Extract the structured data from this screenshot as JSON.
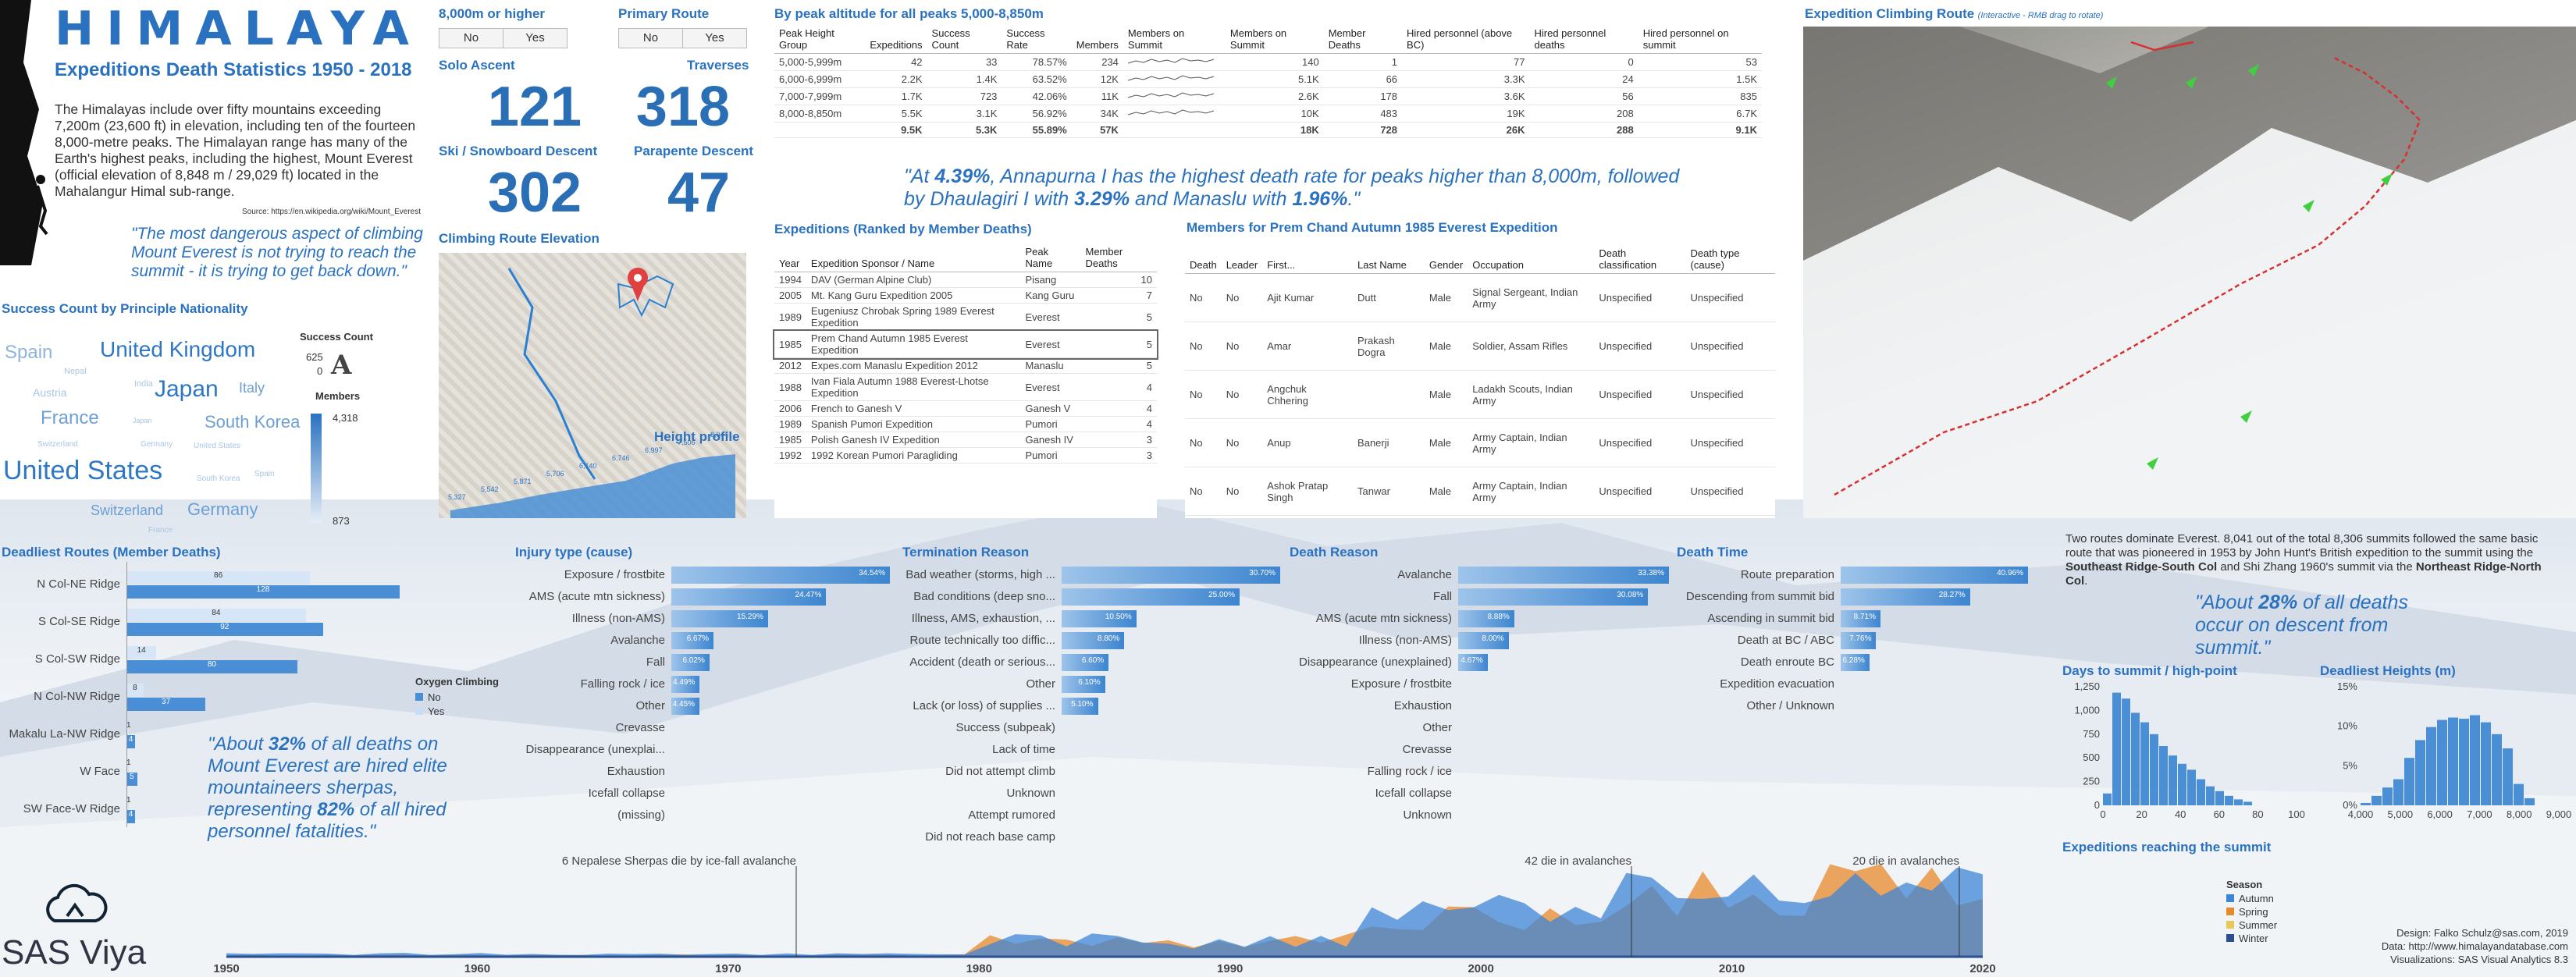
{
  "header": {
    "title": "HIMALAYA",
    "subtitle": "Expeditions Death Statistics 1950 - 2018",
    "intro": "The Himalayas include over fifty mountains exceeding 7,200m (23,600 ft) in elevation, including ten of the fourteen 8,000-metre peaks. The Himalayan range has many of the Earth's highest peaks, including the highest, Mount Everest (official elevation of 8,848 m / 29,029 ft) located in the Mahalangur Himal sub-range.",
    "source": "Source: https://en.wikipedia.org/wiki/Mount_Everest",
    "quote": "\"The most dangerous aspect of climbing Mount Everest is not trying to reach the summit - it is trying to get back down.\""
  },
  "filters": {
    "f8000": {
      "label": "8,000m or higher",
      "no": "No",
      "yes": "Yes"
    },
    "primary": {
      "label": "Primary Route",
      "no": "No",
      "yes": "Yes"
    }
  },
  "kpis": {
    "solo_label": "Solo Ascent",
    "solo": "121",
    "trav_label": "Traverses",
    "trav": "318",
    "ski_label": "Ski / Snowboard Descent",
    "ski": "302",
    "para_label": "Parapente Descent",
    "para": "47"
  },
  "success": {
    "title": "Success Count by Principle Nationality",
    "legend1": "Success Count",
    "v625": "625",
    "v0": "0",
    "legend2": "Members",
    "m_max": "4,318",
    "m_min": "873",
    "words": [
      {
        "t": "Spain",
        "s": 24,
        "x": 6,
        "y": 438,
        "c": "#8fb3db"
      },
      {
        "t": "United Kingdom",
        "s": 28,
        "x": 128,
        "y": 432,
        "c": "#2e77c4"
      },
      {
        "t": "Nepal",
        "s": 11,
        "x": 82,
        "y": 470,
        "c": "#a9c5e4"
      },
      {
        "t": "Italy",
        "s": 18,
        "x": 306,
        "y": 487,
        "c": "#6c9fd5"
      },
      {
        "t": "Austria",
        "s": 14,
        "x": 42,
        "y": 495,
        "c": "#a9c5e4"
      },
      {
        "t": "Japan",
        "s": 30,
        "x": 198,
        "y": 482,
        "c": "#2e77c4"
      },
      {
        "t": "India",
        "s": 11,
        "x": 172,
        "y": 486,
        "c": "#a9c5e4"
      },
      {
        "t": "France",
        "s": 24,
        "x": 52,
        "y": 522,
        "c": "#6c9fd5"
      },
      {
        "t": "Japan",
        "s": 9,
        "x": 170,
        "y": 534,
        "c": "#a9c5e4"
      },
      {
        "t": "South Korea",
        "s": 22,
        "x": 262,
        "y": 528,
        "c": "#6c9fd5"
      },
      {
        "t": "Switzerland",
        "s": 10,
        "x": 48,
        "y": 564,
        "c": "#a9c5e4"
      },
      {
        "t": "Germany",
        "s": 10,
        "x": 180,
        "y": 564,
        "c": "#a9c5e4"
      },
      {
        "t": "United States",
        "s": 10,
        "x": 248,
        "y": 566,
        "c": "#a9c5e4"
      },
      {
        "t": "United States",
        "s": 34,
        "x": 4,
        "y": 584,
        "c": "#2e77c4"
      },
      {
        "t": "South Korea",
        "s": 10,
        "x": 252,
        "y": 608,
        "c": "#a9c5e4"
      },
      {
        "t": "Spain",
        "s": 10,
        "x": 326,
        "y": 602,
        "c": "#a9c5e4"
      },
      {
        "t": "Switzerland",
        "s": 18,
        "x": 116,
        "y": 644,
        "c": "#6c9fd5"
      },
      {
        "t": "Germany",
        "s": 22,
        "x": 240,
        "y": 640,
        "c": "#6c9fd5"
      },
      {
        "t": "France",
        "s": 10,
        "x": 190,
        "y": 674,
        "c": "#a9c5e4"
      }
    ]
  },
  "elev": {
    "title": "Climbing Route Elevation",
    "profile": "Height profile",
    "labels": [
      "5,327",
      "5,542",
      "5,871",
      "5,706",
      "6,140",
      "6,746",
      "6,997",
      "7,506",
      "8,044"
    ]
  },
  "peaks": {
    "title": "By peak altitude for all peaks 5,000-8,850m",
    "cols": [
      "Peak Height Group",
      "Expeditions",
      "Success Count",
      "Success Rate",
      "Members",
      "Members on Summit",
      "Members on Summit",
      "Member Deaths",
      "Hired personnel (above BC)",
      "Hired personnel deaths",
      "Hired personnel on summit"
    ],
    "rows": [
      [
        "5,000-5,999m",
        "42",
        "33",
        "78.57%",
        "234",
        "140",
        "1",
        "77",
        "0",
        "53"
      ],
      [
        "6,000-6,999m",
        "2.2K",
        "1.4K",
        "63.52%",
        "12K",
        "5.1K",
        "66",
        "3.3K",
        "24",
        "1.5K"
      ],
      [
        "7,000-7,999m",
        "1.7K",
        "723",
        "42.06%",
        "11K",
        "2.6K",
        "178",
        "3.6K",
        "56",
        "835"
      ],
      [
        "8,000-8,850m",
        "5.5K",
        "3.1K",
        "56.92%",
        "34K",
        "10K",
        "483",
        "19K",
        "208",
        "6.7K"
      ]
    ],
    "total": [
      "",
      "9.5K",
      "5.3K",
      "55.89%",
      "57K",
      "18K",
      "728",
      "26K",
      "288",
      "9.1K"
    ]
  },
  "annapurna_quote": "\"At 4.39%, Annapurna I has the highest death rate for peaks higher than 8,000m, followed by Dhaulagiri I with 3.29% and Manaslu with 1.96%.\"",
  "exped": {
    "title": "Expeditions (Ranked by Member Deaths)",
    "cols": [
      "Year",
      "Expedition Sponsor / Name",
      "Peak Name",
      "Member Deaths"
    ],
    "rows": [
      [
        "1994",
        "DAV (German Alpine Club)",
        "Pisang",
        "10"
      ],
      [
        "2005",
        "Mt. Kang Guru Expedition 2005",
        "Kang Guru",
        "7"
      ],
      [
        "1989",
        "Eugeniusz Chrobak Spring 1989 Everest Expedition",
        "Everest",
        "5"
      ],
      [
        "1985",
        "Prem Chand Autumn 1985 Everest Expedition",
        "Everest",
        "5"
      ],
      [
        "2012",
        "Expes.com Manaslu Expedition 2012",
        "Manaslu",
        "5"
      ],
      [
        "1988",
        "Ivan Fiala Autumn 1988 Everest-Lhotse Expedition",
        "Everest",
        "4"
      ],
      [
        "2006",
        "French to Ganesh V",
        "Ganesh V",
        "4"
      ],
      [
        "1989",
        "Spanish Pumori Expedition",
        "Pumori",
        "4"
      ],
      [
        "1985",
        "Polish Ganesh IV Expedition",
        "Ganesh IV",
        "3"
      ],
      [
        "1992",
        "1992 Korean Pumori Paragliding",
        "Pumori",
        "3"
      ]
    ]
  },
  "members": {
    "title": "Members for Prem Chand Autumn 1985 Everest Expedition",
    "cols": [
      "Death",
      "Leader",
      "First...",
      "Last Name",
      "Gender",
      "Occupation",
      "Death classification",
      "Death type (cause)"
    ],
    "rows": [
      [
        "No",
        "No",
        "Ajit Kumar",
        "Dutt",
        "Male",
        "Signal Sergeant, Indian Army",
        "Unspecified",
        "Unspecified"
      ],
      [
        "No",
        "No",
        "Amar",
        "Prakash Dogra",
        "Male",
        "Soldier, Assam Rifles",
        "Unspecified",
        "Unspecified"
      ],
      [
        "No",
        "No",
        "Angchuk Chhering",
        "",
        "Male",
        "Ladakh Scouts, Indian Army",
        "Unspecified",
        "Unspecified"
      ],
      [
        "No",
        "No",
        "Anup",
        "Banerji",
        "Male",
        "Army Captain, Indian Army",
        "Unspecified",
        "Unspecified"
      ],
      [
        "No",
        "No",
        "Ashok Pratap Singh",
        "Tanwar",
        "Male",
        "Army Captain, Indian Army",
        "Unspecified",
        "Unspecified"
      ]
    ]
  },
  "route3d": {
    "title": "Expedition Climbing Route",
    "note": "(Interactive - RMB drag to rotate)"
  },
  "deadliest": {
    "title": "Deadliest Routes (Member Deaths)",
    "legend": "Oxygen Climbing",
    "no": "No",
    "yes": "Yes",
    "rows": [
      {
        "n": "N Col-NE Ridge",
        "no": 128,
        "yes": 86
      },
      {
        "n": "S Col-SE Ridge",
        "no": 92,
        "yes": 84
      },
      {
        "n": "S Col-SW Ridge",
        "no": 80,
        "yes": 14
      },
      {
        "n": "N Col-NW Ridge",
        "no": 37,
        "yes": 8
      },
      {
        "n": "Makalu La-NW Ridge",
        "no": 4,
        "yes": 1
      },
      {
        "n": "W Face",
        "no": 5,
        "yes": 1
      },
      {
        "n": "SW Face-W Ridge",
        "no": 4,
        "yes": 1
      }
    ],
    "quote": "\"About 32% of all deaths on Mount Everest are hired elite mountaineers sherpas, representing 82% of all hired personnel fatalities.\""
  },
  "injury": {
    "title": "Injury type (cause)",
    "rows": [
      [
        "Exposure / frostbite",
        34.54
      ],
      [
        "AMS (acute mtn sickness)",
        24.47
      ],
      [
        "Illness (non-AMS)",
        15.29
      ],
      [
        "Avalanche",
        6.67
      ],
      [
        "Fall",
        6.02
      ],
      [
        "Falling rock / ice",
        4.49
      ],
      [
        "Other",
        4.45
      ],
      [
        "Crevasse",
        0
      ],
      [
        "Disappearance (unexplai...",
        0
      ],
      [
        "Exhaustion",
        0
      ],
      [
        "Icefall collapse",
        0
      ],
      [
        "(missing)",
        0
      ]
    ]
  },
  "term": {
    "title": "Termination Reason",
    "rows": [
      [
        "Bad weather (storms, high ...",
        30.7
      ],
      [
        "Bad conditions (deep sno...",
        25.0
      ],
      [
        "Illness, AMS, exhaustion, ...",
        10.5
      ],
      [
        "Route technically too diffic...",
        8.8
      ],
      [
        "Accident (death or serious...",
        6.6
      ],
      [
        "Other",
        6.1
      ],
      [
        "Lack (or loss) of supplies ...",
        5.1
      ],
      [
        "Success (subpeak)",
        0
      ],
      [
        "Lack of time",
        0
      ],
      [
        "Did not attempt climb",
        0
      ],
      [
        "Unknown",
        0
      ],
      [
        "Attempt rumored",
        0
      ],
      [
        "Did not reach base camp",
        0
      ]
    ]
  },
  "death_reason": {
    "title": "Death Reason",
    "rows": [
      [
        "Avalanche",
        33.38
      ],
      [
        "Fall",
        30.08
      ],
      [
        "AMS (acute mtn sickness)",
        8.88
      ],
      [
        "Illness (non-AMS)",
        8.0
      ],
      [
        "Disappearance (unexplained)",
        4.67
      ],
      [
        "Exposure / frostbite",
        0
      ],
      [
        "Exhaustion",
        0
      ],
      [
        "Other",
        0
      ],
      [
        "Crevasse",
        0
      ],
      [
        "Falling rock / ice",
        0
      ],
      [
        "Icefall collapse",
        0
      ],
      [
        "Unknown",
        0
      ]
    ]
  },
  "death_time": {
    "title": "Death Time",
    "rows": [
      [
        "Route preparation",
        40.96
      ],
      [
        "Descending from summit bid",
        28.27
      ],
      [
        "Ascending in summit bid",
        8.71
      ],
      [
        "Death at BC / ABC",
        7.76
      ],
      [
        "Death enroute BC",
        6.28
      ],
      [
        "Expedition evacuation",
        0
      ],
      [
        "Other / Unknown",
        0
      ]
    ]
  },
  "everest_note": "Two routes dominate Everest. 8,041 out of the total 8,306 summits followed the same basic route that was pioneered in 1953 by John Hunt's British expedition to the summit using the Southeast Ridge-South Col and Shi Zhang 1960's summit via the Northeast Ridge-North Col.",
  "descent_quote": "\"About 28% of all deaths occur on descent from summit.\"",
  "days": {
    "title": "Days to summit / high-point",
    "yticks": [
      "1,250",
      "1,000",
      "750",
      "500",
      "250",
      "0"
    ],
    "xticks": [
      "0",
      "20",
      "40",
      "60",
      "80",
      "100"
    ]
  },
  "heights": {
    "title": "Deadliest Heights (m)",
    "yticks": [
      "15%",
      "10%",
      "5%",
      "0%"
    ],
    "xticks": [
      "4,000",
      "5,000",
      "6,000",
      "7,000",
      "8,000",
      "9,000"
    ]
  },
  "summit_ts": {
    "title": "Expeditions reaching the summit",
    "legend": "Season",
    "seasons": [
      {
        "n": "Autumn",
        "c": "#3d86d6"
      },
      {
        "n": "Spring",
        "c": "#e8892a"
      },
      {
        "n": "Summer",
        "c": "#e8c85a"
      },
      {
        "n": "Winter",
        "c": "#2c4f8f"
      }
    ],
    "annotations": [
      "6 Nepalese Sherpas die by ice-fall avalanche",
      "42 die in avalanches",
      "20 die in avalanches"
    ],
    "xticks": [
      "1950",
      "1960",
      "1970",
      "1980",
      "1990",
      "2000",
      "2010",
      "2020"
    ]
  },
  "footer": {
    "design": "Design: Falko Schulz@sas.com, 2019",
    "data": "Data: http://www.himalayandatabase.com",
    "viz": "Visualizations: SAS Visual Analytics 8.3",
    "brand": "SAS Viya"
  },
  "chart_data": [
    {
      "type": "bar",
      "title": "Deadliest Routes (Member Deaths)",
      "categories": [
        "N Col-NE Ridge",
        "S Col-SE Ridge",
        "S Col-SW Ridge",
        "N Col-NW Ridge",
        "Makalu La-NW Ridge",
        "W Face",
        "SW Face-W Ridge"
      ],
      "series": [
        {
          "name": "No",
          "values": [
            128,
            92,
            80,
            37,
            4,
            5,
            4
          ]
        },
        {
          "name": "Yes",
          "values": [
            86,
            84,
            14,
            8,
            1,
            1,
            1
          ]
        }
      ]
    },
    {
      "type": "bar",
      "title": "Injury type (cause)",
      "categories": [
        "Exposure / frostbite",
        "AMS (acute mtn sickness)",
        "Illness (non-AMS)",
        "Avalanche",
        "Fall",
        "Falling rock / ice",
        "Other"
      ],
      "values": [
        34.54,
        24.47,
        15.29,
        6.67,
        6.02,
        4.49,
        4.45
      ]
    },
    {
      "type": "bar",
      "title": "Death Time",
      "categories": [
        "Route preparation",
        "Descending from summit bid",
        "Ascending in summit bid",
        "Death at BC / ABC",
        "Death enroute BC"
      ],
      "values": [
        40.96,
        28.27,
        8.71,
        7.76,
        6.28
      ]
    }
  ]
}
